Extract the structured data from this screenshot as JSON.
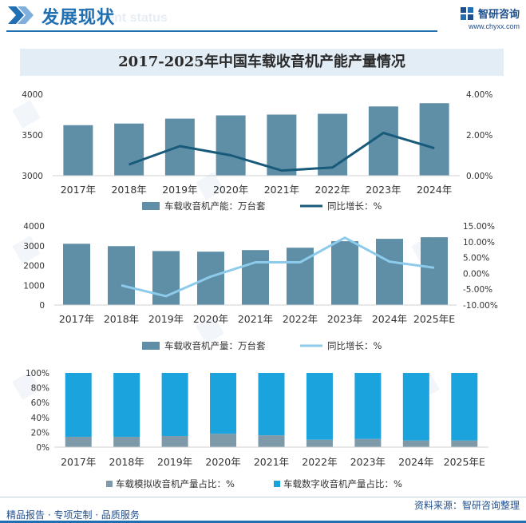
{
  "header": {
    "title": "发展现状",
    "subtitle": "ment status",
    "brand_name": "智研咨询",
    "brand_url": "www.chyxx.com"
  },
  "title": "2017-2025年中国车载收音机产能产量情况",
  "colors": {
    "bar": "#5f8fa7",
    "line_dark": "#185a7a",
    "line_light": "#8ccbeb",
    "analog": "#7e9aa9",
    "digital": "#1aa3dd",
    "brand": "#1f6fb2"
  },
  "chart_data": [
    {
      "type": "bar",
      "categories": [
        "2017年",
        "2018年",
        "2019年",
        "2020年",
        "2021年",
        "2022年",
        "2023年",
        "2024年"
      ],
      "series": [
        {
          "name": "车载收音机产能：万台套",
          "kind": "bar",
          "axis": "left",
          "values": [
            3620,
            3640,
            3700,
            3740,
            3750,
            3760,
            3850,
            3890
          ]
        },
        {
          "name": "同比增长：%",
          "kind": "line",
          "axis": "right",
          "values": [
            null,
            0.55,
            1.45,
            1.0,
            0.25,
            0.4,
            2.1,
            1.35
          ]
        }
      ],
      "y_left": {
        "min": 3000,
        "max": 4000,
        "ticks": [
          "3000",
          "3500",
          "4000"
        ]
      },
      "y_right": {
        "min": 0,
        "max": 4,
        "ticks": [
          "0.00%",
          "2.00%",
          "4.00%"
        ]
      }
    },
    {
      "type": "bar",
      "categories": [
        "2017年",
        "2018年",
        "2019年",
        "2020年",
        "2021年",
        "2022年",
        "2023年",
        "2024年",
        "2025年E"
      ],
      "series": [
        {
          "name": "车载收音机产量：万台套",
          "kind": "bar",
          "axis": "left",
          "values": [
            3100,
            2980,
            2730,
            2700,
            2780,
            2900,
            3230,
            3350,
            3430
          ]
        },
        {
          "name": "同比增长：%",
          "kind": "line",
          "axis": "right",
          "values": [
            null,
            -3.8,
            -7.2,
            -1.0,
            3.5,
            3.5,
            11.3,
            3.7,
            1.8
          ]
        }
      ],
      "y_left": {
        "min": 0,
        "max": 4000,
        "ticks": [
          "0",
          "1000",
          "2000",
          "3000",
          "4000"
        ]
      },
      "y_right": {
        "min": -10,
        "max": 15,
        "ticks": [
          "-10.00%",
          "-5.00%",
          "0.00%",
          "5.00%",
          "10.00%",
          "15.00%"
        ]
      }
    },
    {
      "type": "bar",
      "stacked": true,
      "categories": [
        "2017年",
        "2018年",
        "2019年",
        "2020年",
        "2021年",
        "2022年",
        "2023年",
        "2024年",
        "2025年E"
      ],
      "series": [
        {
          "name": "车载模拟收音机产量占比：%",
          "values": [
            14,
            14,
            15,
            18,
            16,
            10,
            11,
            9,
            9
          ]
        },
        {
          "name": "车载数字收音机产量占比：%",
          "values": [
            86,
            86,
            85,
            82,
            84,
            90,
            89,
            91,
            91
          ]
        }
      ],
      "y_left": {
        "min": 0,
        "max": 100,
        "ticks": [
          "0%",
          "20%",
          "40%",
          "60%",
          "80%",
          "100%"
        ]
      }
    }
  ],
  "footer": {
    "left": "精品报告 · 专项定制 · 品质服务",
    "right": "资料来源：智研咨询整理"
  }
}
